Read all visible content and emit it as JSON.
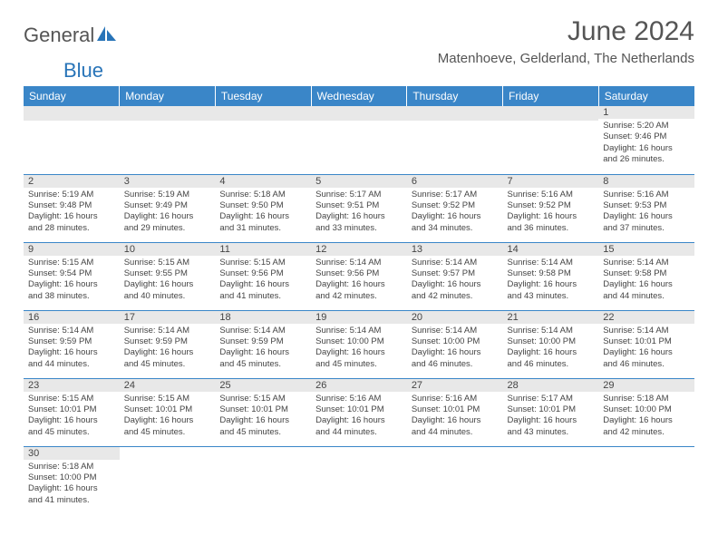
{
  "logo": {
    "text1": "General",
    "text2": "Blue"
  },
  "title": "June 2024",
  "location": "Matenhoeve, Gelderland, The Netherlands",
  "colors": {
    "header_bg": "#3a86c8",
    "header_text": "#ffffff",
    "daynum_bg": "#e8e8e8",
    "row_border": "#3a86c8",
    "logo_accent": "#2874b8",
    "body_text": "#444444"
  },
  "typography": {
    "title_fontsize": 30,
    "location_fontsize": 15,
    "daynum_fontsize": 11,
    "dayinfo_fontsize": 9.5,
    "header_fontsize": 12
  },
  "weekdays": [
    "Sunday",
    "Monday",
    "Tuesday",
    "Wednesday",
    "Thursday",
    "Friday",
    "Saturday"
  ],
  "weeks": [
    [
      null,
      null,
      null,
      null,
      null,
      null,
      {
        "n": "1",
        "sr": "5:20 AM",
        "ss": "9:46 PM",
        "dh": "16",
        "dm": "26"
      }
    ],
    [
      {
        "n": "2",
        "sr": "5:19 AM",
        "ss": "9:48 PM",
        "dh": "16",
        "dm": "28"
      },
      {
        "n": "3",
        "sr": "5:19 AM",
        "ss": "9:49 PM",
        "dh": "16",
        "dm": "29"
      },
      {
        "n": "4",
        "sr": "5:18 AM",
        "ss": "9:50 PM",
        "dh": "16",
        "dm": "31"
      },
      {
        "n": "5",
        "sr": "5:17 AM",
        "ss": "9:51 PM",
        "dh": "16",
        "dm": "33"
      },
      {
        "n": "6",
        "sr": "5:17 AM",
        "ss": "9:52 PM",
        "dh": "16",
        "dm": "34"
      },
      {
        "n": "7",
        "sr": "5:16 AM",
        "ss": "9:52 PM",
        "dh": "16",
        "dm": "36"
      },
      {
        "n": "8",
        "sr": "5:16 AM",
        "ss": "9:53 PM",
        "dh": "16",
        "dm": "37"
      }
    ],
    [
      {
        "n": "9",
        "sr": "5:15 AM",
        "ss": "9:54 PM",
        "dh": "16",
        "dm": "38"
      },
      {
        "n": "10",
        "sr": "5:15 AM",
        "ss": "9:55 PM",
        "dh": "16",
        "dm": "40"
      },
      {
        "n": "11",
        "sr": "5:15 AM",
        "ss": "9:56 PM",
        "dh": "16",
        "dm": "41"
      },
      {
        "n": "12",
        "sr": "5:14 AM",
        "ss": "9:56 PM",
        "dh": "16",
        "dm": "42"
      },
      {
        "n": "13",
        "sr": "5:14 AM",
        "ss": "9:57 PM",
        "dh": "16",
        "dm": "42"
      },
      {
        "n": "14",
        "sr": "5:14 AM",
        "ss": "9:58 PM",
        "dh": "16",
        "dm": "43"
      },
      {
        "n": "15",
        "sr": "5:14 AM",
        "ss": "9:58 PM",
        "dh": "16",
        "dm": "44"
      }
    ],
    [
      {
        "n": "16",
        "sr": "5:14 AM",
        "ss": "9:59 PM",
        "dh": "16",
        "dm": "44"
      },
      {
        "n": "17",
        "sr": "5:14 AM",
        "ss": "9:59 PM",
        "dh": "16",
        "dm": "45"
      },
      {
        "n": "18",
        "sr": "5:14 AM",
        "ss": "9:59 PM",
        "dh": "16",
        "dm": "45"
      },
      {
        "n": "19",
        "sr": "5:14 AM",
        "ss": "10:00 PM",
        "dh": "16",
        "dm": "45"
      },
      {
        "n": "20",
        "sr": "5:14 AM",
        "ss": "10:00 PM",
        "dh": "16",
        "dm": "46"
      },
      {
        "n": "21",
        "sr": "5:14 AM",
        "ss": "10:00 PM",
        "dh": "16",
        "dm": "46"
      },
      {
        "n": "22",
        "sr": "5:14 AM",
        "ss": "10:01 PM",
        "dh": "16",
        "dm": "46"
      }
    ],
    [
      {
        "n": "23",
        "sr": "5:15 AM",
        "ss": "10:01 PM",
        "dh": "16",
        "dm": "45"
      },
      {
        "n": "24",
        "sr": "5:15 AM",
        "ss": "10:01 PM",
        "dh": "16",
        "dm": "45"
      },
      {
        "n": "25",
        "sr": "5:15 AM",
        "ss": "10:01 PM",
        "dh": "16",
        "dm": "45"
      },
      {
        "n": "26",
        "sr": "5:16 AM",
        "ss": "10:01 PM",
        "dh": "16",
        "dm": "44"
      },
      {
        "n": "27",
        "sr": "5:16 AM",
        "ss": "10:01 PM",
        "dh": "16",
        "dm": "44"
      },
      {
        "n": "28",
        "sr": "5:17 AM",
        "ss": "10:01 PM",
        "dh": "16",
        "dm": "43"
      },
      {
        "n": "29",
        "sr": "5:18 AM",
        "ss": "10:00 PM",
        "dh": "16",
        "dm": "42"
      }
    ],
    [
      {
        "n": "30",
        "sr": "5:18 AM",
        "ss": "10:00 PM",
        "dh": "16",
        "dm": "41"
      },
      null,
      null,
      null,
      null,
      null,
      null
    ]
  ],
  "labels": {
    "sunrise": "Sunrise:",
    "sunset": "Sunset:",
    "daylight": "Daylight:",
    "hours": "hours",
    "and": "and",
    "minutes": "minutes."
  }
}
